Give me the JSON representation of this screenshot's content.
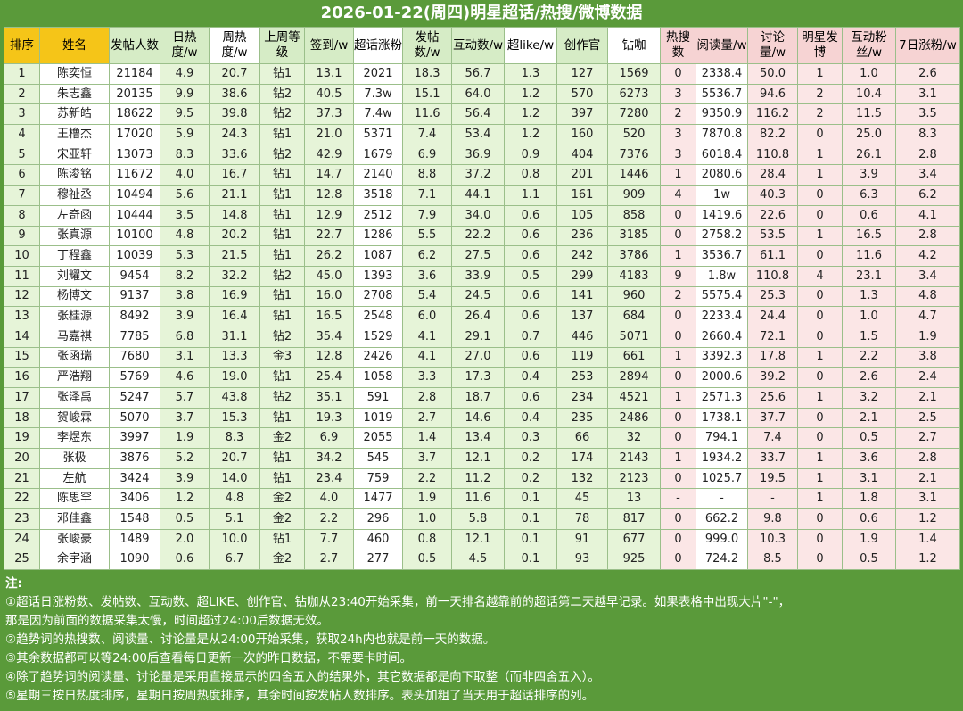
{
  "title": "2026-01-22(周四)明星超话/热搜/微博数据",
  "headers": [
    "排序",
    "姓名",
    "发帖人数",
    "日热度/w",
    "周热度/w",
    "上周等级",
    "签到/w",
    "超话涨粉",
    "发帖数/w",
    "互动数/w",
    "超like/w",
    "创作官",
    "钻咖",
    "热搜数",
    "阅读量/w",
    "讨论量/w",
    "明星发博",
    "互动粉丝/w",
    "7日涨粉/w"
  ],
  "rows": [
    [
      "1",
      "陈奕恒",
      "21184",
      "4.9",
      "20.7",
      "钻1",
      "13.1",
      "2021",
      "18.3",
      "56.7",
      "1.3",
      "127",
      "1569",
      "0",
      "2338.4",
      "50.0",
      "1",
      "1.0",
      "2.6"
    ],
    [
      "2",
      "朱志鑫",
      "20135",
      "9.9",
      "38.6",
      "钻2",
      "40.5",
      "7.3w",
      "15.1",
      "64.0",
      "1.2",
      "570",
      "6273",
      "3",
      "5536.7",
      "94.6",
      "2",
      "10.4",
      "3.1"
    ],
    [
      "3",
      "苏新皓",
      "18622",
      "9.5",
      "39.8",
      "钻2",
      "37.3",
      "7.4w",
      "11.6",
      "56.4",
      "1.2",
      "397",
      "7280",
      "2",
      "9350.9",
      "116.2",
      "2",
      "11.5",
      "3.5"
    ],
    [
      "4",
      "王橹杰",
      "17020",
      "5.9",
      "24.3",
      "钻1",
      "21.0",
      "5371",
      "7.4",
      "53.4",
      "1.2",
      "160",
      "520",
      "3",
      "7870.8",
      "82.2",
      "0",
      "25.0",
      "8.3"
    ],
    [
      "5",
      "宋亚轩",
      "13073",
      "8.3",
      "33.6",
      "钻2",
      "42.9",
      "1679",
      "6.9",
      "36.9",
      "0.9",
      "404",
      "7376",
      "3",
      "6018.4",
      "110.8",
      "1",
      "26.1",
      "2.8"
    ],
    [
      "6",
      "陈浚铭",
      "11672",
      "4.0",
      "16.7",
      "钻1",
      "14.7",
      "2140",
      "8.8",
      "37.2",
      "0.8",
      "201",
      "1446",
      "1",
      "2080.6",
      "28.4",
      "1",
      "3.9",
      "3.4"
    ],
    [
      "7",
      "穆祉丞",
      "10494",
      "5.6",
      "21.1",
      "钻1",
      "12.8",
      "3518",
      "7.1",
      "44.1",
      "1.1",
      "161",
      "909",
      "4",
      "1w",
      "40.3",
      "0",
      "6.3",
      "6.2"
    ],
    [
      "8",
      "左奇函",
      "10444",
      "3.5",
      "14.8",
      "钻1",
      "12.9",
      "2512",
      "7.9",
      "34.0",
      "0.6",
      "105",
      "858",
      "0",
      "1419.6",
      "22.6",
      "0",
      "0.6",
      "4.1"
    ],
    [
      "9",
      "张真源",
      "10100",
      "4.8",
      "20.2",
      "钻1",
      "22.7",
      "1286",
      "5.5",
      "22.2",
      "0.6",
      "236",
      "3185",
      "0",
      "2758.2",
      "53.5",
      "1",
      "16.5",
      "2.8"
    ],
    [
      "10",
      "丁程鑫",
      "10039",
      "5.3",
      "21.5",
      "钻1",
      "26.2",
      "1087",
      "6.2",
      "27.5",
      "0.6",
      "242",
      "3786",
      "1",
      "3536.7",
      "61.1",
      "0",
      "11.6",
      "4.2"
    ],
    [
      "11",
      "刘耀文",
      "9454",
      "8.2",
      "32.2",
      "钻2",
      "45.0",
      "1393",
      "3.6",
      "33.9",
      "0.5",
      "299",
      "4183",
      "9",
      "1.8w",
      "110.8",
      "4",
      "23.1",
      "3.4"
    ],
    [
      "12",
      "杨博文",
      "9137",
      "3.8",
      "16.9",
      "钻1",
      "16.0",
      "2708",
      "5.4",
      "24.5",
      "0.6",
      "141",
      "960",
      "2",
      "5575.4",
      "25.3",
      "0",
      "1.3",
      "4.8"
    ],
    [
      "13",
      "张桂源",
      "8492",
      "3.9",
      "16.4",
      "钻1",
      "16.5",
      "2548",
      "6.0",
      "26.4",
      "0.6",
      "137",
      "684",
      "0",
      "2233.4",
      "24.4",
      "0",
      "1.0",
      "4.7"
    ],
    [
      "14",
      "马嘉祺",
      "7785",
      "6.8",
      "31.1",
      "钻2",
      "35.4",
      "1529",
      "4.1",
      "29.1",
      "0.7",
      "446",
      "5071",
      "0",
      "2660.4",
      "72.1",
      "0",
      "1.5",
      "1.9"
    ],
    [
      "15",
      "张函瑞",
      "7680",
      "3.1",
      "13.3",
      "金3",
      "12.8",
      "2426",
      "4.1",
      "27.0",
      "0.6",
      "119",
      "661",
      "1",
      "3392.3",
      "17.8",
      "1",
      "2.2",
      "3.8"
    ],
    [
      "16",
      "严浩翔",
      "5769",
      "4.6",
      "19.0",
      "钻1",
      "25.4",
      "1058",
      "3.3",
      "17.3",
      "0.4",
      "253",
      "2894",
      "0",
      "2000.6",
      "39.2",
      "0",
      "2.6",
      "2.4"
    ],
    [
      "17",
      "张泽禹",
      "5247",
      "5.7",
      "43.8",
      "钻2",
      "35.1",
      "591",
      "2.8",
      "18.7",
      "0.6",
      "234",
      "4521",
      "1",
      "2571.3",
      "25.6",
      "1",
      "3.2",
      "2.1"
    ],
    [
      "18",
      "贺峻霖",
      "5070",
      "3.7",
      "15.3",
      "钻1",
      "19.3",
      "1019",
      "2.7",
      "14.6",
      "0.4",
      "235",
      "2486",
      "0",
      "1738.1",
      "37.7",
      "0",
      "2.1",
      "2.5"
    ],
    [
      "19",
      "李煜东",
      "3997",
      "1.9",
      "8.3",
      "金2",
      "6.9",
      "2055",
      "1.4",
      "13.4",
      "0.3",
      "66",
      "32",
      "0",
      "794.1",
      "7.4",
      "0",
      "0.5",
      "2.7"
    ],
    [
      "20",
      "张极",
      "3876",
      "5.2",
      "20.7",
      "钻1",
      "34.2",
      "545",
      "3.7",
      "12.1",
      "0.2",
      "174",
      "2143",
      "1",
      "1934.2",
      "33.7",
      "1",
      "3.6",
      "2.8"
    ],
    [
      "21",
      "左航",
      "3424",
      "3.9",
      "14.0",
      "钻1",
      "23.4",
      "759",
      "2.2",
      "11.2",
      "0.2",
      "132",
      "2123",
      "0",
      "1025.7",
      "19.5",
      "1",
      "3.1",
      "2.1"
    ],
    [
      "22",
      "陈思罕",
      "3406",
      "1.2",
      "4.8",
      "金2",
      "4.0",
      "1477",
      "1.9",
      "11.6",
      "0.1",
      "45",
      "13",
      "-",
      "-",
      "-",
      "1",
      "1.8",
      "3.1"
    ],
    [
      "23",
      "邓佳鑫",
      "1548",
      "0.5",
      "5.1",
      "金2",
      "2.2",
      "296",
      "1.0",
      "5.8",
      "0.1",
      "78",
      "817",
      "0",
      "662.2",
      "9.8",
      "0",
      "0.6",
      "1.2"
    ],
    [
      "24",
      "张峻豪",
      "1489",
      "2.0",
      "10.0",
      "钻1",
      "7.7",
      "460",
      "0.8",
      "12.1",
      "0.1",
      "91",
      "677",
      "0",
      "999.0",
      "10.3",
      "0",
      "1.9",
      "1.4"
    ],
    [
      "25",
      "余宇涵",
      "1090",
      "0.6",
      "6.7",
      "金2",
      "2.7",
      "277",
      "0.5",
      "4.5",
      "0.1",
      "93",
      "925",
      "0",
      "724.2",
      "8.5",
      "0",
      "0.5",
      "1.2"
    ]
  ],
  "highlights": {
    "red": [
      "1-7",
      "2-7",
      "3-7",
      "1-14",
      "2-14",
      "4-15",
      "4-18",
      "6-18",
      "10-14",
      "10-15",
      "10-2",
      "14-14",
      "16-14",
      "18-14",
      "23-14",
      "23-15"
    ],
    "blue": [
      "6-6",
      "11-3",
      "13-6",
      "18-14",
      "23-3",
      "23-6",
      "23-4",
      "24-2",
      "24-3",
      "24-6"
    ]
  },
  "notes": {
    "head": "注:",
    "lines": [
      "①超话日涨粉数、发帖数、互动数、超LIKE、创作官、钻咖从23:40开始采集，前一天排名越靠前的超话第二天越早记录。如果表格中出现大片\"-\"，",
      "那是因为前面的数据采集太慢，时间超过24:00后数据无效。",
      "②趋势词的热搜数、阅读量、讨论量是从24:00开始采集，获取24h内也就是前一天的数据。",
      "③其余数据都可以等24:00后查看每日更新一次的昨日数据，不需要卡时间。",
      "④除了趋势词的阅读量、讨论量是采用直接显示的四舍五入的结果外，其它数据都是向下取整（而非四舍五入）。",
      "⑤星期三按日热度排序，星期日按周热度排序，其余时间按发帖人数排序。表头加粗了当天用于超话排序的列。"
    ]
  },
  "colors": {
    "background": "#5a9a3a",
    "header_yellow": "#f5c518",
    "header_green": "#d6ecc6",
    "header_pink": "#f6d3d3",
    "red_text": "#c0392b",
    "blue_text": "#2a5bb0"
  }
}
